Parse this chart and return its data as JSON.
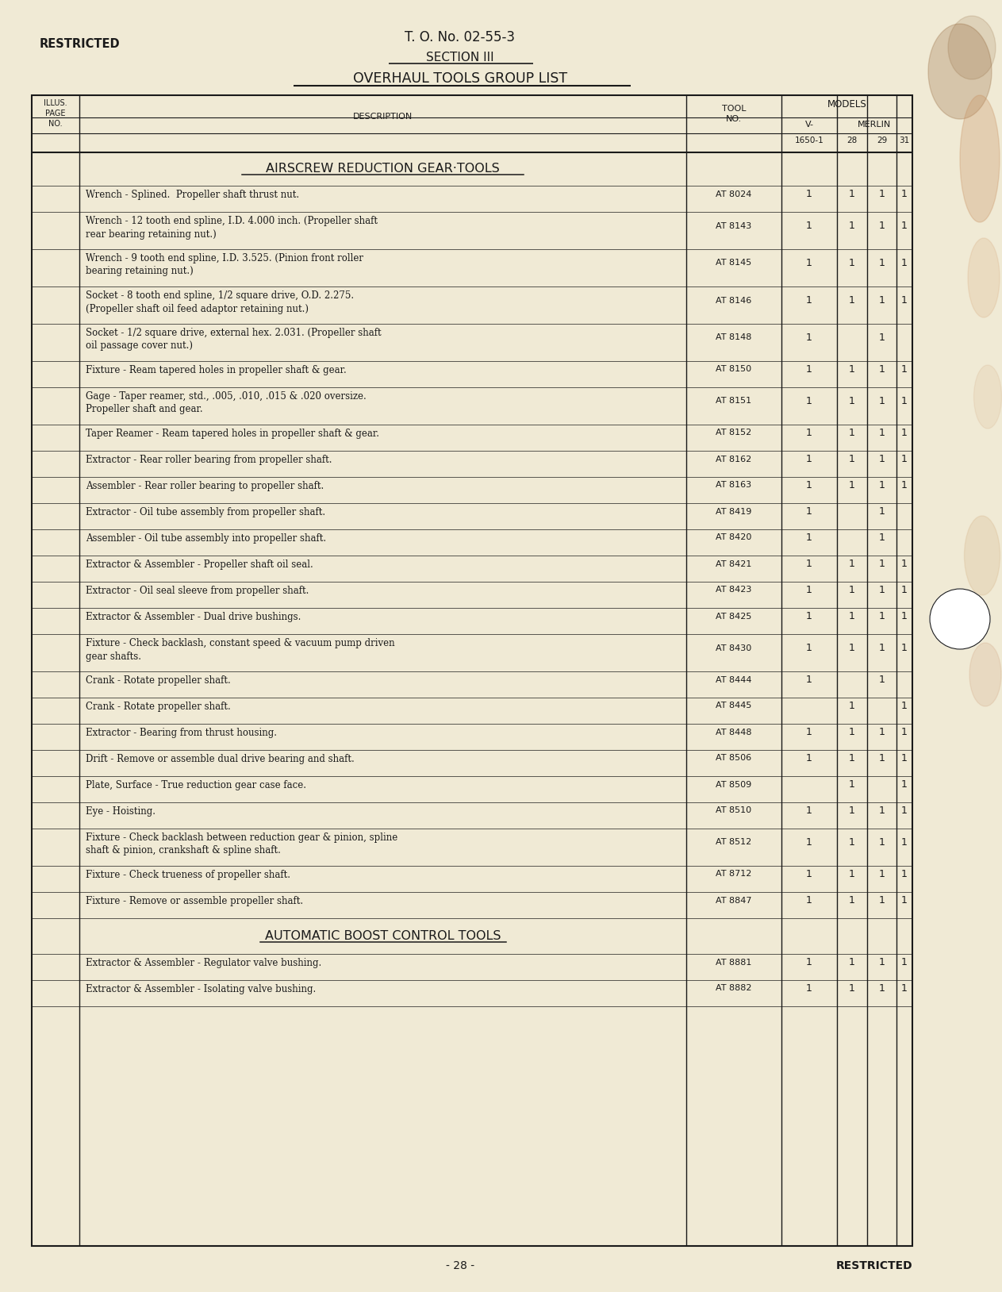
{
  "bg_color": "#f0ead0",
  "paper_color": "#f2ecce",
  "text_color": "#1a1a1a",
  "header_left": "RESTRICTED",
  "header_center": "T. O. No. 02-55-3",
  "section_title": "SECTION III",
  "page_title": "OVERHAUL TOOLS GROUP LIST",
  "section1_title": "AIRSCREW REDUCTION GEAR·TOOLS",
  "rows": [
    {
      "desc": "Wrench - Splined.  Propeller shaft thrust nut.",
      "tool": "AT 8024",
      "v": "1",
      "m28": "1",
      "m29": "1",
      "m31": "1"
    },
    {
      "desc": "Wrench - 12 tooth end spline, I.D. 4.000 inch. (Propeller shaft\nrear bearing retaining nut.)",
      "tool": "AT 8143",
      "v": "1",
      "m28": "1",
      "m29": "1",
      "m31": "1"
    },
    {
      "desc": "Wrench - 9 tooth end spline, I.D. 3.525. (Pinion front roller\nbearing retaining nut.)",
      "tool": "AT 8145",
      "v": "1",
      "m28": "1",
      "m29": "1",
      "m31": "1"
    },
    {
      "desc": "Socket - 8 tooth end spline, 1/2 square drive, O.D. 2.275.\n(Propeller shaft oil feed adaptor retaining nut.)",
      "tool": "AT 8146",
      "v": "1",
      "m28": "1",
      "m29": "1",
      "m31": "1"
    },
    {
      "desc": "Socket - 1/2 square drive, external hex. 2.031. (Propeller shaft\noil passage cover nut.)",
      "tool": "AT 8148",
      "v": "1",
      "m28": "",
      "m29": "1",
      "m31": ""
    },
    {
      "desc": "Fixture - Ream tapered holes in propeller shaft & gear.",
      "tool": "AT 8150",
      "v": "1",
      "m28": "1",
      "m29": "1",
      "m31": "1"
    },
    {
      "desc": "Gage - Taper reamer, std., .005, .010, .015 & .020 oversize.\nPropeller shaft and gear.",
      "tool": "AT 8151",
      "v": "1",
      "m28": "1",
      "m29": "1",
      "m31": "1"
    },
    {
      "desc": "Taper Reamer - Ream tapered holes in propeller shaft & gear.",
      "tool": "AT 8152",
      "v": "1",
      "m28": "1",
      "m29": "1",
      "m31": "1"
    },
    {
      "desc": "Extractor - Rear roller bearing from propeller shaft.",
      "tool": "AT 8162",
      "v": "1",
      "m28": "1",
      "m29": "1",
      "m31": "1"
    },
    {
      "desc": "Assembler - Rear roller bearing to propeller shaft.",
      "tool": "AT 8163",
      "v": "1",
      "m28": "1",
      "m29": "1",
      "m31": "1"
    },
    {
      "desc": "Extractor - Oil tube assembly from propeller shaft.",
      "tool": "AT 8419",
      "v": "1",
      "m28": "",
      "m29": "1",
      "m31": ""
    },
    {
      "desc": "Assembler - Oil tube assembly into propeller shaft.",
      "tool": "AT 8420",
      "v": "1",
      "m28": "",
      "m29": "1",
      "m31": ""
    },
    {
      "desc": "Extractor & Assembler - Propeller shaft oil seal.",
      "tool": "AT 8421",
      "v": "1",
      "m28": "1",
      "m29": "1",
      "m31": "1"
    },
    {
      "desc": "Extractor - Oil seal sleeve from propeller shaft.",
      "tool": "AT 8423",
      "v": "1",
      "m28": "1",
      "m29": "1",
      "m31": "1"
    },
    {
      "desc": "Extractor & Assembler - Dual drive bushings.",
      "tool": "AT 8425",
      "v": "1",
      "m28": "1",
      "m29": "1",
      "m31": "1"
    },
    {
      "desc": "Fixture - Check backlash, constant speed & vacuum pump driven\ngear shafts.",
      "tool": "AT 8430",
      "v": "1",
      "m28": "1",
      "m29": "1",
      "m31": "1"
    },
    {
      "desc": "Crank - Rotate propeller shaft.",
      "tool": "AT 8444",
      "v": "1",
      "m28": "",
      "m29": "1",
      "m31": ""
    },
    {
      "desc": "Crank - Rotate propeller shaft.",
      "tool": "AT 8445",
      "v": "",
      "m28": "1",
      "m29": "",
      "m31": "1"
    },
    {
      "desc": "Extractor - Bearing from thrust housing.",
      "tool": "AT 8448",
      "v": "1",
      "m28": "1",
      "m29": "1",
      "m31": "1"
    },
    {
      "desc": "Drift - Remove or assemble dual drive bearing and shaft.",
      "tool": "AT 8506",
      "v": "1",
      "m28": "1",
      "m29": "1",
      "m31": "1"
    },
    {
      "desc": "Plate, Surface - True reduction gear case face.",
      "tool": "AT 8509",
      "v": "",
      "m28": "1",
      "m29": "",
      "m31": "1"
    },
    {
      "desc": "Eye - Hoisting.",
      "tool": "AT 8510",
      "v": "1",
      "m28": "1",
      "m29": "1",
      "m31": "1"
    },
    {
      "desc": "Fixture - Check backlash between reduction gear & pinion, spline\nshaft & pinion, crankshaft & spline shaft.",
      "tool": "AT 8512",
      "v": "1",
      "m28": "1",
      "m29": "1",
      "m31": "1"
    },
    {
      "desc": "Fixture - Check trueness of propeller shaft.",
      "tool": "AT 8712",
      "v": "1",
      "m28": "1",
      "m29": "1",
      "m31": "1"
    },
    {
      "desc": "Fixture - Remove or assemble propeller shaft.",
      "tool": "AT 8847",
      "v": "1",
      "m28": "1",
      "m29": "1",
      "m31": "1"
    }
  ],
  "section2_title": "AUTOMATIC BOOST CONTROL TOOLS",
  "rows2": [
    {
      "desc": "Extractor & Assembler - Regulator valve bushing.",
      "tool": "AT 8881",
      "v": "1",
      "m28": "1",
      "m29": "1",
      "m31": "1"
    },
    {
      "desc": "Extractor & Assembler - Isolating valve bushing.",
      "tool": "AT 8882",
      "v": "1",
      "m28": "1",
      "m29": "1",
      "m31": "1"
    }
  ],
  "footer_center": "- 28 -",
  "footer_right": "RESTRICTED"
}
